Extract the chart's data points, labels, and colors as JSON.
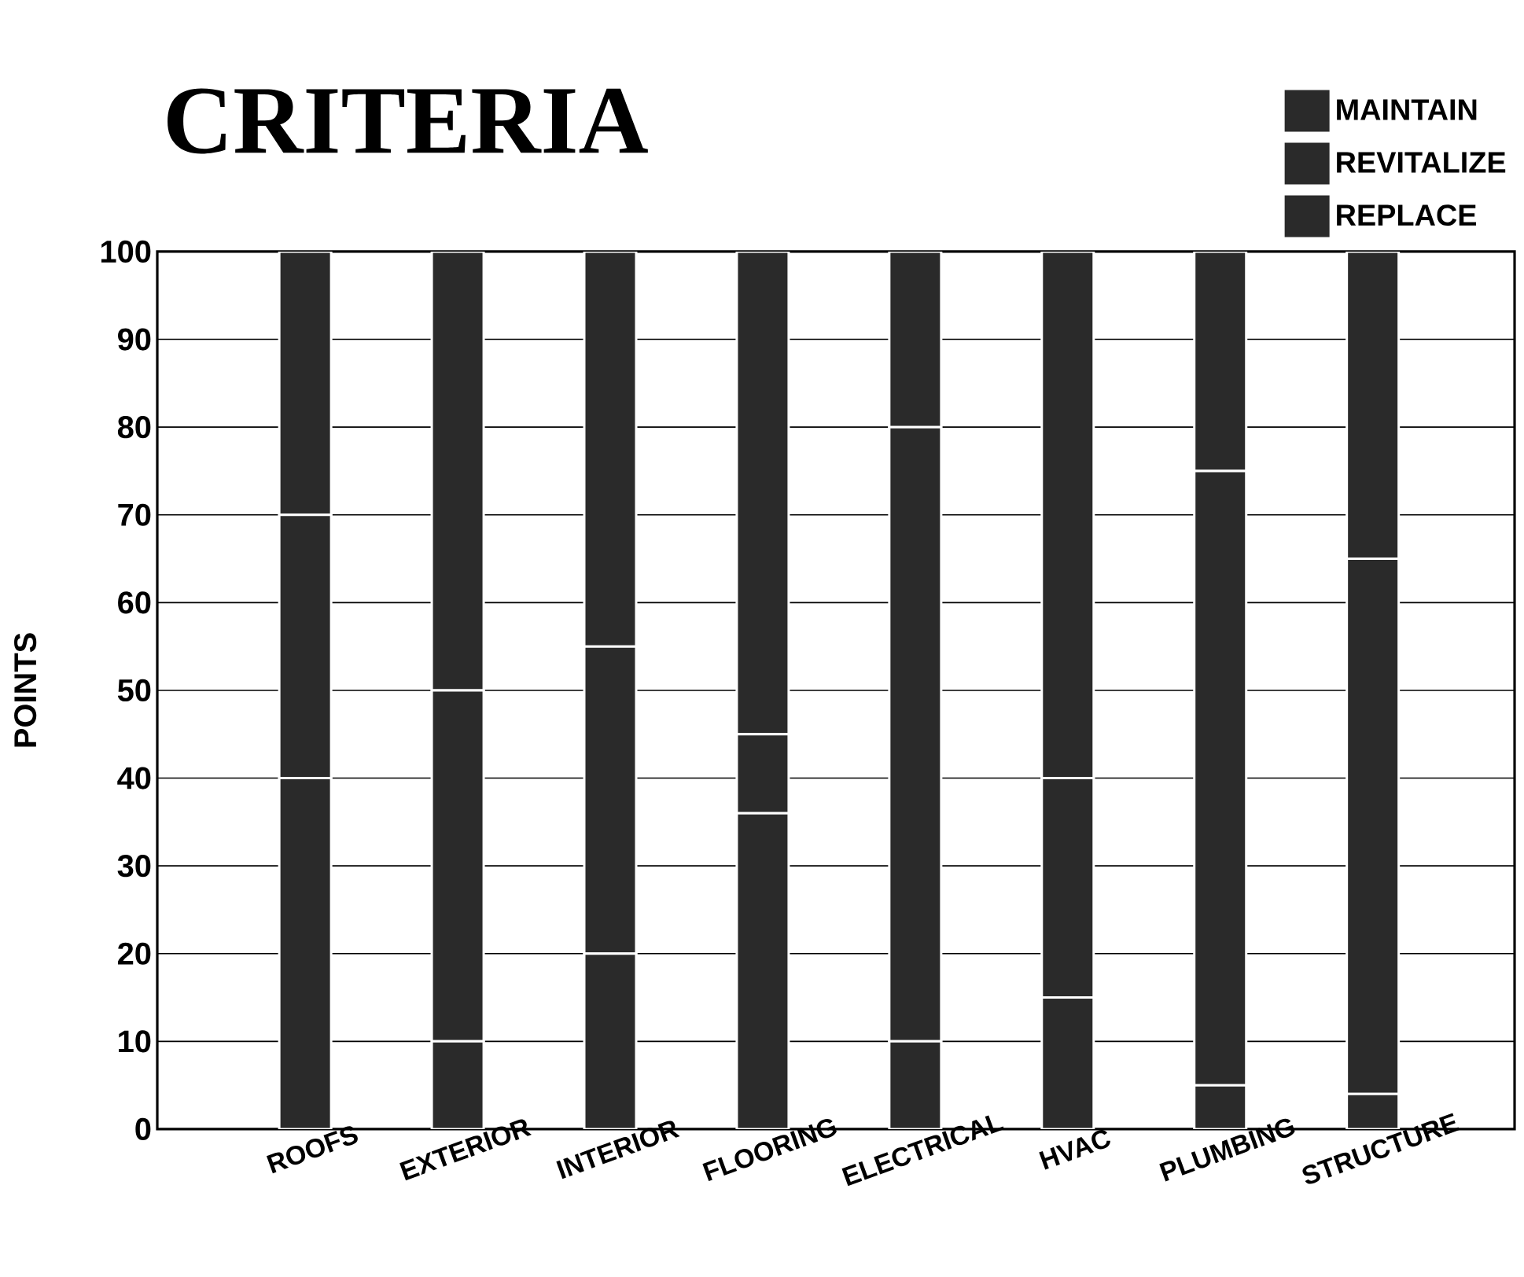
{
  "chart_data": {
    "type": "bar",
    "title": "CRITERIA",
    "ylabel": "POINTS",
    "stacked": true,
    "grid": "y",
    "legend": "top right",
    "categories": [
      "ROOFS",
      "EXTERIOR",
      "INTERIOR",
      "FLOORING",
      "ELECTRICAL",
      "HVAC",
      "PLUMBING",
      "STRUCTURE"
    ],
    "series": [
      {
        "name": "MAINTAIN",
        "color": "#2a2a2a",
        "values": [
          40,
          10,
          20,
          36,
          10,
          15,
          5,
          4
        ]
      },
      {
        "name": "REVITALIZE",
        "color": "#2a2a2a",
        "values": [
          30,
          40,
          35,
          9,
          70,
          25,
          70,
          61
        ]
      },
      {
        "name": "REPLACE",
        "color": "#2a2a2a",
        "values": [
          30,
          50,
          45,
          55,
          20,
          60,
          25,
          35
        ]
      }
    ],
    "ylim": [
      0,
      100
    ],
    "yticks": [
      0,
      10,
      20,
      30,
      40,
      50,
      60,
      70,
      80,
      90,
      100
    ]
  }
}
